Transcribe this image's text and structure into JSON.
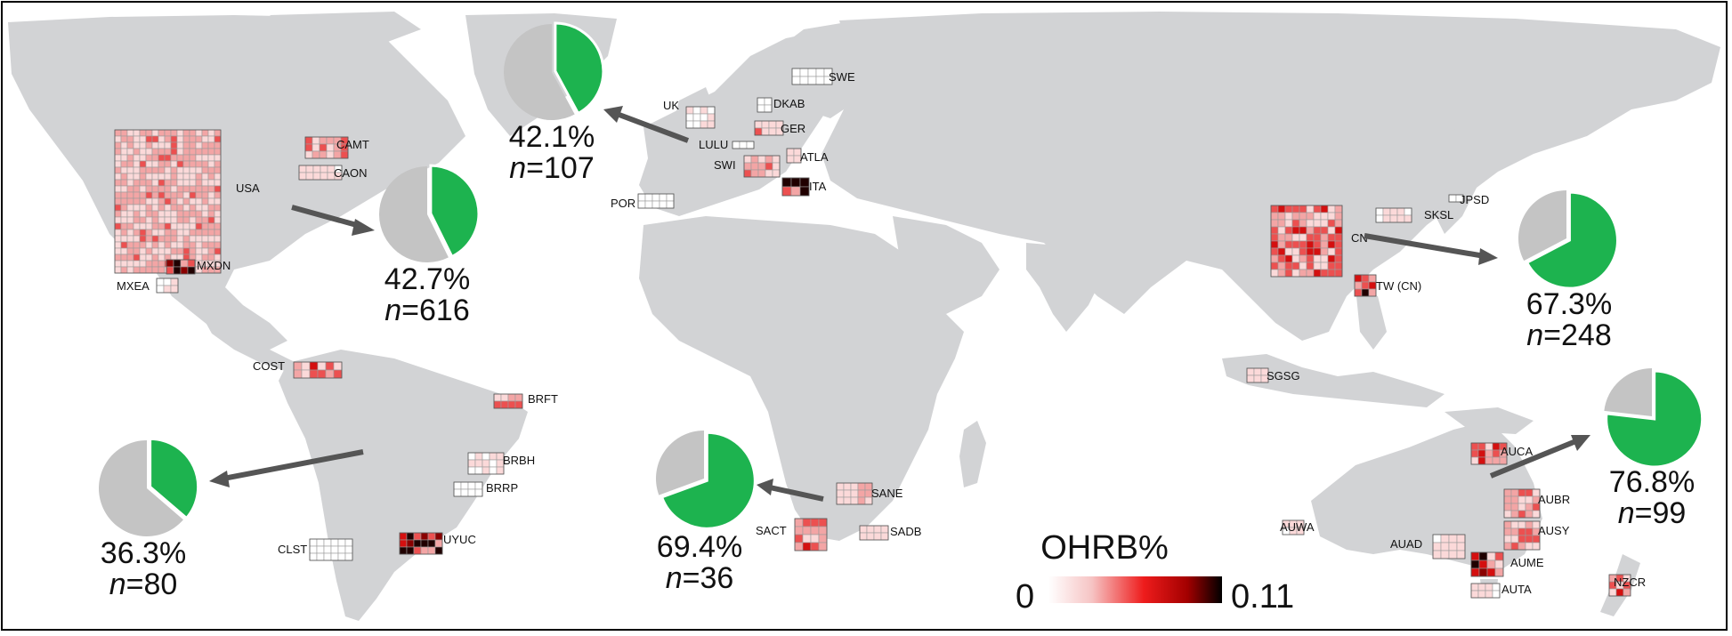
{
  "legend": {
    "title": "OHRB%",
    "min_label": "0",
    "max_label": "0.11",
    "gradient": [
      "#ffffff",
      "#f6c4c4",
      "#ee1c1c",
      "#a30000",
      "#000000"
    ]
  },
  "colors": {
    "land": "#d2d3d5",
    "pie_positive": "#1db34f",
    "pie_negative": "#c4c4c4",
    "arrow": "#555555"
  },
  "pies": [
    {
      "id": "north-america",
      "percent_label": "42.7%",
      "n_prefix": "n",
      "n_value": "=616",
      "fraction": 0.427
    },
    {
      "id": "europe",
      "percent_label": "42.1%",
      "n_prefix": "n",
      "n_value": "=107",
      "fraction": 0.421
    },
    {
      "id": "east-asia",
      "percent_label": "67.3%",
      "n_prefix": "n",
      "n_value": "=248",
      "fraction": 0.673
    },
    {
      "id": "south-america",
      "percent_label": "36.3%",
      "n_prefix": "n",
      "n_value": "=80",
      "fraction": 0.363
    },
    {
      "id": "africa",
      "percent_label": "69.4%",
      "n_prefix": "n",
      "n_value": "=36",
      "fraction": 0.694
    },
    {
      "id": "oceania",
      "percent_label": "76.8%",
      "n_prefix": "n",
      "n_value": "=99",
      "fraction": 0.768
    }
  ],
  "sites": [
    {
      "label": "USA"
    },
    {
      "label": "CAMT"
    },
    {
      "label": "CAON"
    },
    {
      "label": "MXDN"
    },
    {
      "label": "MXEA"
    },
    {
      "label": "UK"
    },
    {
      "label": "DKAB"
    },
    {
      "label": "SWE"
    },
    {
      "label": "GER"
    },
    {
      "label": "LULU"
    },
    {
      "label": "SWI"
    },
    {
      "label": "ATLA"
    },
    {
      "label": "ITA"
    },
    {
      "label": "POR"
    },
    {
      "label": "SKSL"
    },
    {
      "label": "JPSD"
    },
    {
      "label": "CN"
    },
    {
      "label": "TW (CN)"
    },
    {
      "label": "SGSG"
    },
    {
      "label": "COST"
    },
    {
      "label": "BRFT"
    },
    {
      "label": "BRBH"
    },
    {
      "label": "BRRP"
    },
    {
      "label": "CLST"
    },
    {
      "label": "UYUC"
    },
    {
      "label": "SANE"
    },
    {
      "label": "SACT"
    },
    {
      "label": "SADB"
    },
    {
      "label": "AUCA"
    },
    {
      "label": "AUBR"
    },
    {
      "label": "AUSY"
    },
    {
      "label": "AUWA"
    },
    {
      "label": "AUAD"
    },
    {
      "label": "AUME"
    },
    {
      "label": "AUTA"
    },
    {
      "label": "NZCR"
    }
  ]
}
